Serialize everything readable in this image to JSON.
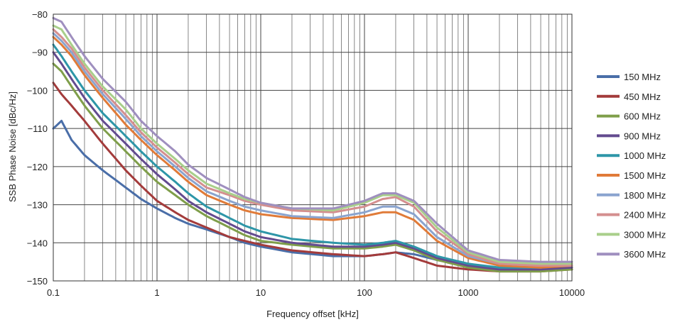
{
  "chart_data": {
    "type": "line",
    "xlabel": "Frequency offset [kHz]",
    "ylabel": "SSB Phase Noise [dBc/Hz]",
    "x_scale": "log",
    "xlim": [
      0.1,
      10000
    ],
    "ylim": [
      -150,
      -80
    ],
    "x_ticks": [
      0.1,
      1,
      10,
      100,
      1000,
      10000
    ],
    "x_tick_labels": [
      "0.1",
      "1",
      "10",
      "100",
      "1000",
      "10000"
    ],
    "y_ticks": [
      -150,
      -140,
      -130,
      -120,
      -110,
      -100,
      -90,
      -80
    ],
    "y_tick_labels": [
      "−150",
      "−140",
      "−130",
      "−120",
      "−110",
      "−100",
      "−90",
      "−80"
    ],
    "grid": true,
    "legend_position": "right",
    "x": [
      0.1,
      0.12,
      0.15,
      0.2,
      0.3,
      0.5,
      0.7,
      1,
      1.5,
      2,
      3,
      5,
      7,
      10,
      20,
      50,
      100,
      150,
      200,
      300,
      500,
      1000,
      2000,
      5000,
      10000
    ],
    "series": [
      {
        "name": "150 MHz",
        "color": "#4a6ea8",
        "values": [
          -110,
          -108,
          -113,
          -117,
          -121,
          -125.5,
          -128.5,
          -131,
          -133.5,
          -135,
          -136.5,
          -138.5,
          -140,
          -141,
          -142.5,
          -143.5,
          -143.5,
          -143,
          -142.5,
          -143,
          -144.5,
          -146,
          -147,
          -147,
          -147
        ]
      },
      {
        "name": "450 MHz",
        "color": "#a33b3b",
        "values": [
          -98,
          -101,
          -104,
          -108,
          -114,
          -121,
          -125,
          -129,
          -132,
          -134,
          -136,
          -138.5,
          -139.5,
          -140.5,
          -142,
          -143,
          -143.5,
          -143,
          -142.5,
          -144,
          -146,
          -147,
          -147.5,
          -147.5,
          -147
        ]
      },
      {
        "name": "600 MHz",
        "color": "#7f9e4a",
        "values": [
          -93,
          -95,
          -99,
          -104,
          -110,
          -116,
          -120,
          -124,
          -127.5,
          -130,
          -133,
          -136,
          -138,
          -139.5,
          -140.5,
          -141.5,
          -141.5,
          -141,
          -140.5,
          -142,
          -144.5,
          -146.5,
          -147.5,
          -147.5,
          -147
        ]
      },
      {
        "name": "900 MHz",
        "color": "#634b8f",
        "values": [
          -90,
          -93,
          -97,
          -102,
          -108,
          -114,
          -118,
          -122,
          -126,
          -129,
          -132,
          -135,
          -137,
          -138.5,
          -140,
          -141,
          -141,
          -140.5,
          -140,
          -141.5,
          -144,
          -146,
          -147,
          -147,
          -146.5
        ]
      },
      {
        "name": "1000 MHz",
        "color": "#2e96a8",
        "values": [
          -88,
          -91,
          -95,
          -100,
          -106,
          -112,
          -116,
          -120,
          -124,
          -127,
          -130.5,
          -133.5,
          -135.5,
          -137,
          -139,
          -140,
          -140.5,
          -140,
          -139.5,
          -141,
          -143.5,
          -145.5,
          -146.5,
          -146.5,
          -146
        ]
      },
      {
        "name": "1500 MHz",
        "color": "#e07b39",
        "values": [
          -86,
          -88,
          -91,
          -96,
          -102,
          -109,
          -113,
          -117,
          -121,
          -124,
          -127.5,
          -130,
          -131.5,
          -132.5,
          -133.5,
          -134,
          -133,
          -132,
          -132,
          -134,
          -139.5,
          -144,
          -146,
          -146.5,
          -146
        ]
      },
      {
        "name": "1800 MHz",
        "color": "#8aa4cf",
        "values": [
          -85,
          -87,
          -90,
          -95,
          -101,
          -107.5,
          -112,
          -116,
          -120,
          -123,
          -126.5,
          -129,
          -130.5,
          -131.5,
          -133,
          -133.5,
          -132,
          -130.5,
          -130.5,
          -132.5,
          -138.5,
          -143.5,
          -145.5,
          -146,
          -146
        ]
      },
      {
        "name": "2400 MHz",
        "color": "#d48f8f",
        "values": [
          -84,
          -86,
          -89,
          -94,
          -100,
          -106.5,
          -111,
          -115,
          -119,
          -122,
          -125.5,
          -127.5,
          -129,
          -130,
          -131.5,
          -132,
          -130.5,
          -128.5,
          -128,
          -130.5,
          -137,
          -143,
          -145.5,
          -146,
          -146
        ]
      },
      {
        "name": "3000 MHz",
        "color": "#a9cf8b",
        "values": [
          -83,
          -84,
          -88,
          -93,
          -99,
          -105,
          -110,
          -114,
          -118,
          -121,
          -124.5,
          -127,
          -128.5,
          -129.5,
          -131,
          -131.5,
          -129.5,
          -127.5,
          -127.5,
          -129.5,
          -136,
          -142.5,
          -145,
          -145.5,
          -145.5
        ]
      },
      {
        "name": "3600 MHz",
        "color": "#9f8fbf",
        "values": [
          -81,
          -82,
          -86,
          -91,
          -97,
          -103,
          -108,
          -112,
          -116,
          -119.5,
          -123,
          -126,
          -128,
          -129.5,
          -131,
          -131,
          -129,
          -127,
          -127,
          -129,
          -135,
          -142,
          -144.5,
          -145,
          -145
        ]
      }
    ]
  }
}
